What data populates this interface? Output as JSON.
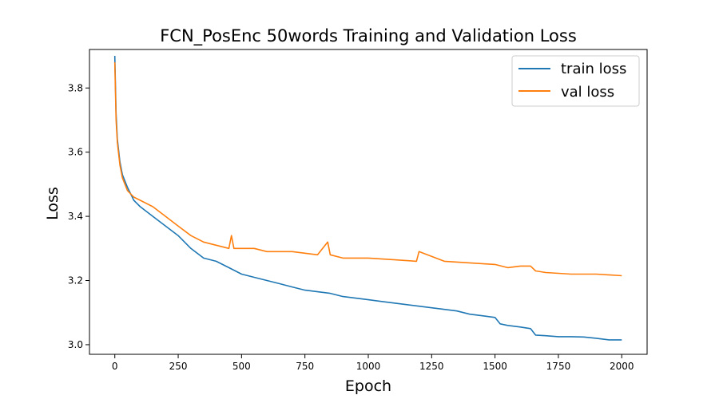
{
  "chart_data": {
    "type": "line",
    "title": "FCN_PosEnc 50words Training and Validation Loss",
    "xlabel": "Epoch",
    "ylabel": "Loss",
    "xlim": [
      -100,
      2100
    ],
    "ylim": [
      2.97,
      3.92
    ],
    "xticks": [
      0,
      250,
      500,
      750,
      1000,
      1250,
      1500,
      1750,
      2000
    ],
    "yticks": [
      3.0,
      3.2,
      3.4,
      3.6,
      3.8
    ],
    "xtick_labels": [
      "0",
      "250",
      "500",
      "750",
      "1000",
      "1250",
      "1500",
      "1750",
      "2000"
    ],
    "ytick_labels": [
      "3.0",
      "3.2",
      "3.4",
      "3.6",
      "3.8"
    ],
    "grid": false,
    "legend_position": "top-right",
    "series": [
      {
        "name": "train loss",
        "color": "#1f77b4",
        "x": [
          0,
          5,
          10,
          20,
          30,
          40,
          50,
          75,
          100,
          150,
          200,
          250,
          300,
          350,
          400,
          450,
          500,
          550,
          600,
          650,
          700,
          750,
          800,
          850,
          900,
          950,
          1000,
          1050,
          1100,
          1150,
          1200,
          1250,
          1300,
          1350,
          1400,
          1450,
          1500,
          1520,
          1550,
          1600,
          1640,
          1660,
          1700,
          1750,
          1800,
          1850,
          1900,
          1950,
          2000
        ],
        "y": [
          3.9,
          3.72,
          3.64,
          3.57,
          3.53,
          3.51,
          3.49,
          3.45,
          3.43,
          3.4,
          3.37,
          3.34,
          3.3,
          3.27,
          3.26,
          3.24,
          3.22,
          3.21,
          3.2,
          3.19,
          3.18,
          3.17,
          3.165,
          3.16,
          3.15,
          3.145,
          3.14,
          3.135,
          3.13,
          3.125,
          3.12,
          3.115,
          3.11,
          3.105,
          3.095,
          3.09,
          3.085,
          3.065,
          3.06,
          3.055,
          3.05,
          3.03,
          3.028,
          3.025,
          3.025,
          3.024,
          3.02,
          3.015,
          3.015
        ]
      },
      {
        "name": "val loss",
        "color": "#ff7f0e",
        "x": [
          0,
          5,
          10,
          20,
          30,
          40,
          50,
          75,
          100,
          150,
          200,
          250,
          300,
          350,
          400,
          450,
          460,
          470,
          500,
          550,
          600,
          650,
          700,
          750,
          800,
          840,
          850,
          900,
          1000,
          1100,
          1190,
          1200,
          1300,
          1400,
          1500,
          1550,
          1600,
          1640,
          1660,
          1700,
          1800,
          1900,
          2000
        ],
        "y": [
          3.88,
          3.7,
          3.63,
          3.56,
          3.52,
          3.5,
          3.48,
          3.46,
          3.45,
          3.43,
          3.4,
          3.37,
          3.34,
          3.32,
          3.31,
          3.3,
          3.34,
          3.3,
          3.3,
          3.3,
          3.29,
          3.29,
          3.29,
          3.285,
          3.28,
          3.32,
          3.28,
          3.27,
          3.27,
          3.265,
          3.26,
          3.29,
          3.26,
          3.255,
          3.25,
          3.24,
          3.245,
          3.245,
          3.23,
          3.225,
          3.22,
          3.22,
          3.215
        ]
      }
    ]
  }
}
